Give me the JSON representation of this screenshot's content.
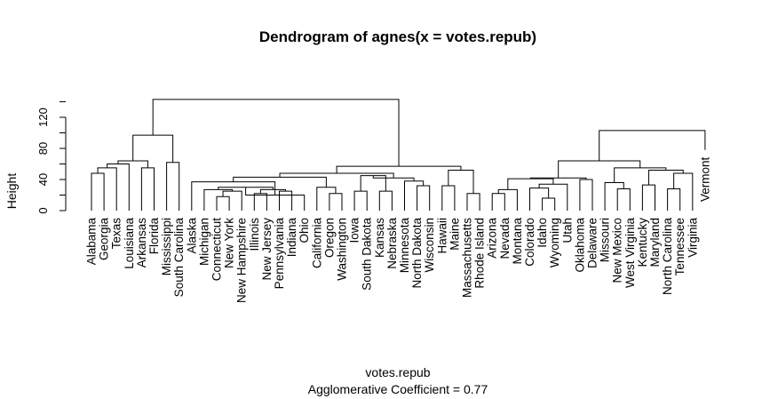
{
  "chart_data": {
    "type": "dendrogram",
    "title": "Dendrogram of  agnes(x = votes.repub)",
    "xlabel": "votes.repub",
    "sublabel": "Agglomerative Coefficient =  0.77",
    "ylabel": "Height",
    "ylim": [
      0,
      145
    ],
    "yticks": [
      0,
      40,
      80,
      120
    ],
    "leaves": [
      "Alabama",
      "Georgia",
      "Texas",
      "Louisiana",
      "Arkansas",
      "Florida",
      "Mississippi",
      "South Carolina",
      "Alaska",
      "Michigan",
      "Connecticut",
      "New York",
      "New Hampshire",
      "Illinois",
      "New Jersey",
      "Pennsylvania",
      "Indiana",
      "Ohio",
      "California",
      "Oregon",
      "Washington",
      "Iowa",
      "South Dakota",
      "Kansas",
      "Nebraska",
      "Minnesota",
      "North Dakota",
      "Wisconsin",
      "Hawaii",
      "Maine",
      "Massachusetts",
      "Rhode Island",
      "Arizona",
      "Nevada",
      "Montana",
      "Colorado",
      "Idaho",
      "Wyoming",
      "Utah",
      "Oklahoma",
      "Delaware",
      "Missouri",
      "New Mexico",
      "West Virginia",
      "Kentucky",
      "Maryland",
      "North Carolina",
      "Tennessee",
      "Virginia",
      "Vermont"
    ],
    "leaf_heights": [
      0,
      0,
      0,
      0,
      0,
      0,
      0,
      0,
      0,
      0,
      0,
      0,
      0,
      0,
      0,
      0,
      0,
      0,
      0,
      0,
      0,
      0,
      0,
      0,
      0,
      0,
      0,
      0,
      0,
      0,
      0,
      0,
      0,
      0,
      0,
      0,
      0,
      0,
      0,
      0,
      0,
      0,
      0,
      0,
      0,
      0,
      0,
      0,
      0,
      78
    ],
    "merges": [
      {
        "a": "Alabama",
        "b": "Georgia",
        "h": 48
      },
      {
        "a": "Alabama+Georgia",
        "b": "Texas",
        "h": 55
      },
      {
        "a": "Alabama..Texas",
        "b": "Louisiana",
        "h": 60
      },
      {
        "a": "Arkansas",
        "b": "Florida",
        "h": 55
      },
      {
        "a": "Alabama..Louisiana",
        "b": "Arkansas+Florida",
        "h": 64
      },
      {
        "a": "Mississippi",
        "b": "South Carolina",
        "h": 62
      },
      {
        "a": "Alabama..Florida",
        "b": "Mississippi+South Carolina",
        "h": 97
      },
      {
        "a": "Connecticut",
        "b": "New York",
        "h": 18
      },
      {
        "a": "Connecticut+New York",
        "b": "New Hampshire",
        "h": 25
      },
      {
        "a": "Michigan",
        "b": "Connecticut..New Hampshire",
        "h": 27
      },
      {
        "a": "Illinois",
        "b": "New Jersey",
        "h": 22
      },
      {
        "a": "Pennsylvania",
        "b": "Indiana",
        "h": 25
      },
      {
        "a": "Illinois+New Jersey",
        "b": "Pennsylvania+Indiana",
        "h": 27
      },
      {
        "a": "Michigan..New Hampshire",
        "b": "Illinois..Indiana",
        "h": 30
      },
      {
        "a": "Michigan..Indiana",
        "b": "Ohio",
        "h": 20
      },
      {
        "a": "Alaska",
        "b": "Michigan..Ohio",
        "h": 37
      },
      {
        "a": "Oregon",
        "b": "Washington",
        "h": 22
      },
      {
        "a": "California",
        "b": "Oregon+Washington",
        "h": 30
      },
      {
        "a": "Alaska..Ohio",
        "b": "California..Washington",
        "h": 43
      },
      {
        "a": "Iowa",
        "b": "South Dakota",
        "h": 25
      },
      {
        "a": "Kansas",
        "b": "Nebraska",
        "h": 25
      },
      {
        "a": "Iowa+South Dakota",
        "b": "Kansas+Nebraska",
        "h": 45
      },
      {
        "a": "North Dakota",
        "b": "Wisconsin",
        "h": 32
      },
      {
        "a": "Minnesota",
        "b": "North Dakota+Wisconsin",
        "h": 38
      },
      {
        "a": "Iowa..Nebraska",
        "b": "Minnesota..Wisconsin",
        "h": 42
      },
      {
        "a": "Alaska..Washington",
        "b": "Iowa..Wisconsin",
        "h": 48
      },
      {
        "a": "Hawaii",
        "b": "Maine",
        "h": 32
      },
      {
        "a": "Massachusetts",
        "b": "Rhode Island",
        "h": 22
      },
      {
        "a": "Hawaii+Maine",
        "b": "Massachusetts+Rhode Island",
        "h": 52
      },
      {
        "a": "Alaska..Wisconsin",
        "b": "Hawaii..Rhode Island",
        "h": 57
      },
      {
        "a": "Alabama..South Carolina",
        "b": "Alaska..Rhode Island",
        "h": 143
      },
      {
        "a": "Arizona",
        "b": "Nevada",
        "h": 22
      },
      {
        "a": "Arizona+Nevada",
        "b": "Montana",
        "h": 27
      },
      {
        "a": "Idaho",
        "b": "Wyoming",
        "h": 16
      },
      {
        "a": "Colorado",
        "b": "Idaho+Wyoming",
        "h": 29
      },
      {
        "a": "Colorado..Wyoming",
        "b": "Utah",
        "h": 34
      },
      {
        "a": "Arizona..Montana",
        "b": "Colorado..Utah",
        "h": 41
      },
      {
        "a": "Oklahoma",
        "b": "Delaware",
        "h": 40
      },
      {
        "a": "Arizona..Utah",
        "b": "Oklahoma+Delaware",
        "h": 42
      },
      {
        "a": "New Mexico",
        "b": "West Virginia",
        "h": 28
      },
      {
        "a": "Missouri",
        "b": "New Mexico+West Virginia",
        "h": 36
      },
      {
        "a": "Kentucky",
        "b": "Maryland",
        "h": 33
      },
      {
        "a": "North Carolina",
        "b": "Tennessee",
        "h": 28
      },
      {
        "a": "North Carolina+Tennessee",
        "b": "Virginia",
        "h": 48
      },
      {
        "a": "Kentucky+Maryland",
        "b": "North Carolina..Virginia",
        "h": 52
      },
      {
        "a": "Missouri..West Virginia",
        "b": "Kentucky..Virginia",
        "h": 55
      },
      {
        "a": "Arizona..Delaware",
        "b": "Missouri..Virginia",
        "h": 64
      },
      {
        "a": "Arizona..Virginia",
        "b": "Vermont",
        "h": 103
      }
    ]
  }
}
